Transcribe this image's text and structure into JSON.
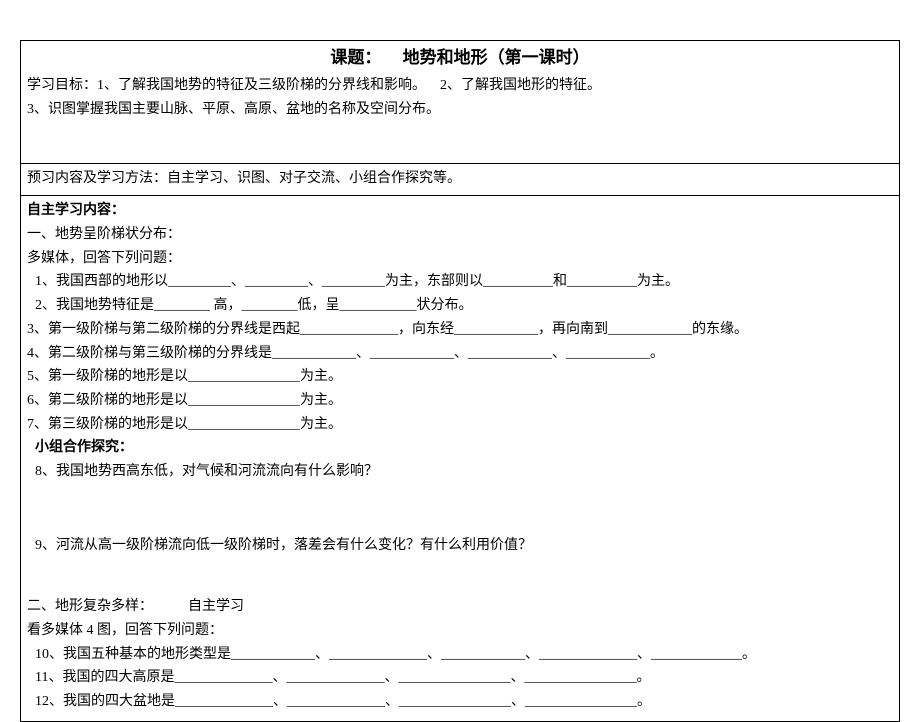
{
  "title_label": "课题：",
  "title_text": "地势和地形（第一课时）",
  "obj_prefix": "学习目标：",
  "obj1": "1、了解我国地势的特征及三级阶梯的分界线和影响。",
  "obj2": "2、了解我国地形的特征。",
  "obj3": "3、识图掌握我国主要山脉、平原、高原、盆地的名称及空间分布。",
  "preview_prefix": "预习内容及学习方法：",
  "preview_text": "自主学习、识图、对子交流、小组合作探究等。",
  "self_study": "自主学习内容：",
  "sec1": "一、地势呈阶梯状分布：",
  "mm1": "多媒体，回答下列问题：",
  "q1": "1、我国西部的地形以_________、_________、_________为主，东部则以__________和__________为主。",
  "q2": "2、我国地势特征是________ 高，________低，呈___________状分布。",
  "q3": "3、第一级阶梯与第二级阶梯的分界线是西起______________，向东经____________，再向南到____________的东缘。",
  "q4": "4、第二级阶梯与第三级阶梯的分界线是____________、____________、____________、____________。",
  "q5": "5、第一级阶梯的地形是以________________为主。",
  "q6": "6、第二级阶梯的地形是以________________为主。",
  "q7": "7、第三级阶梯的地形是以________________为主。",
  "group": "小组合作探究：",
  "q8": "8、我国地势西高东低，对气候和河流流向有什么影响？",
  "q9": "9、河流从高一级阶梯流向低一级阶梯时，落差会有什么变化？有什么利用价值？",
  "sec2_a": "二、地形复杂多样：",
  "sec2_b": "自主学习",
  "mm2": "看多媒体 4 图，回答下列问题：",
  "q10": "10、我国五种基本的地形类型是____________、______________、____________、______________、_____________。",
  "q11": "11、我国的四大高原是______________、______________、________________、________________。",
  "q12": "12、我国的四大盆地是______________、______________、________________、________________。"
}
